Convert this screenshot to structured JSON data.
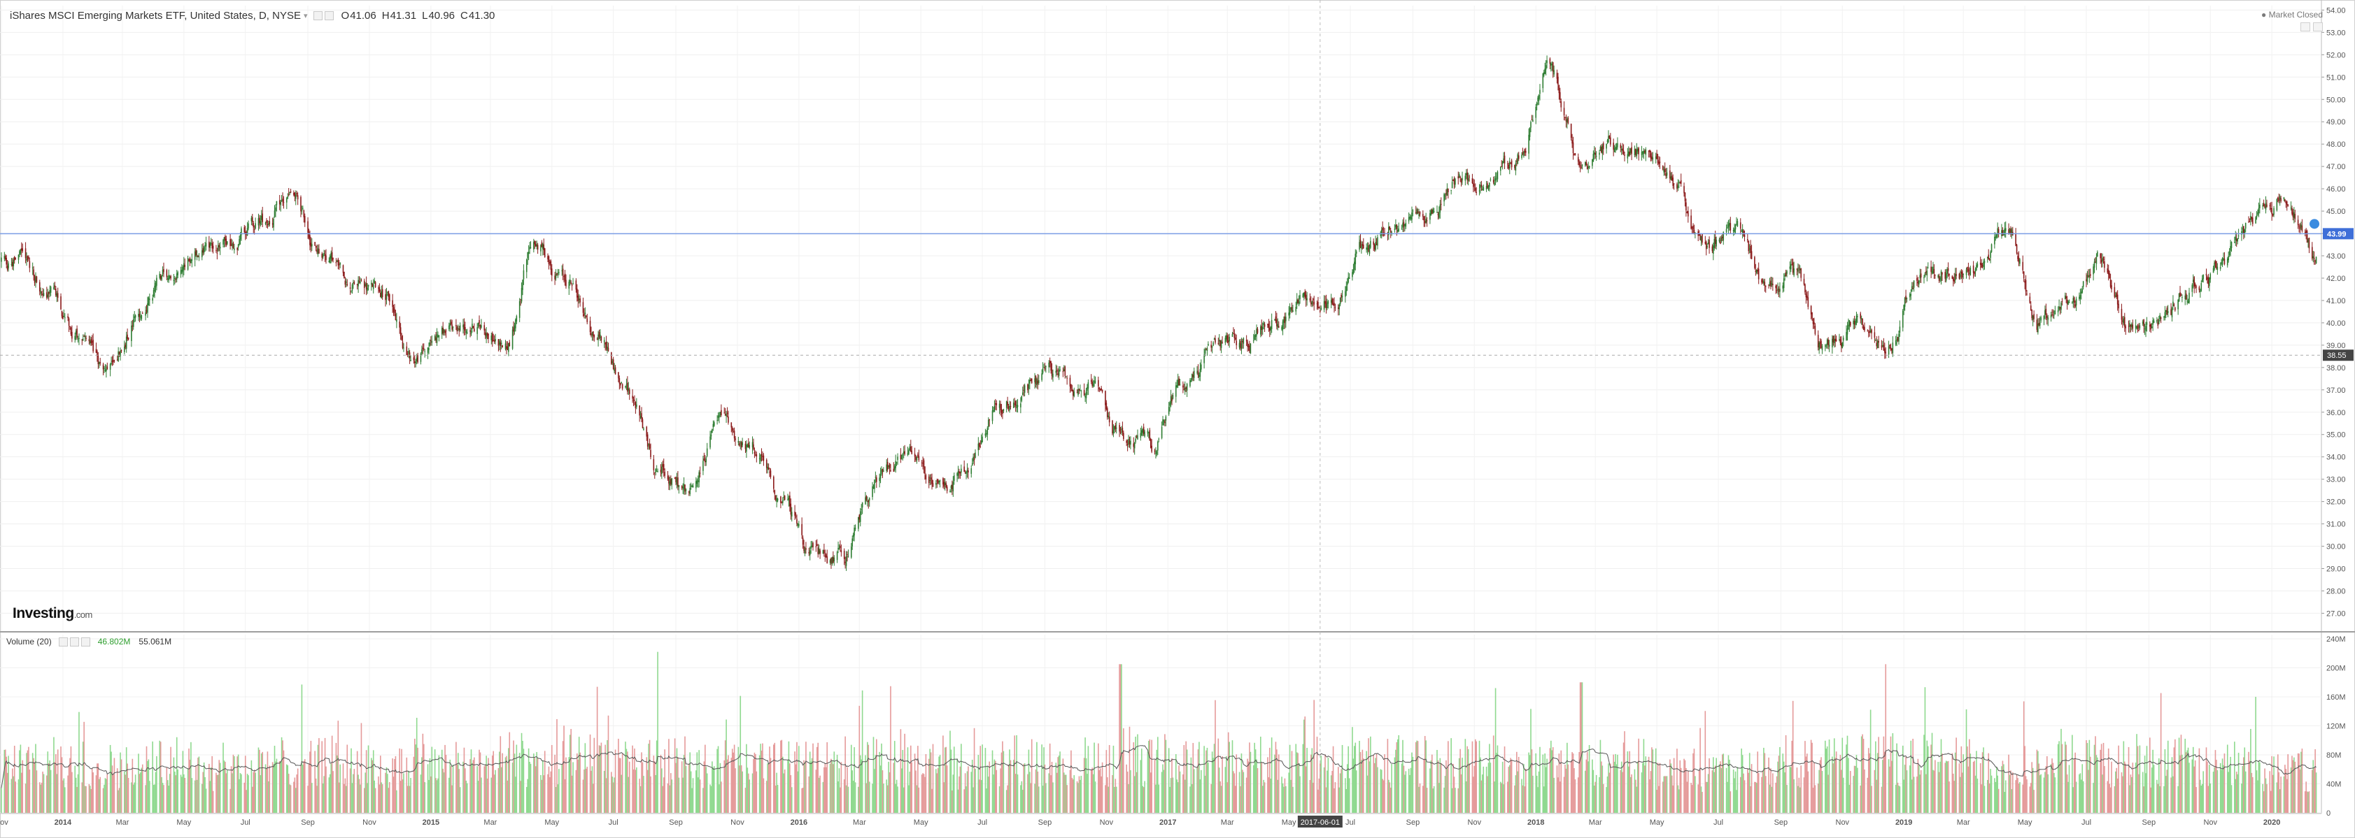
{
  "header": {
    "title": "iShares MSCI Emerging Markets ETF, United States, D, NYSE",
    "dropdown_glyph": "▾",
    "ohlc": [
      {
        "key": "O",
        "value": "41.06"
      },
      {
        "key": "H",
        "value": "41.31"
      },
      {
        "key": "L",
        "value": "40.96"
      },
      {
        "key": "C",
        "value": "41.30"
      }
    ],
    "market_status": "Market Closed"
  },
  "volume_legend": {
    "title": "Volume (20)",
    "value1": "46.802M",
    "value2": "55.061M"
  },
  "branding": {
    "logo_main": "Investing",
    "logo_suffix": ".com"
  },
  "colors": {
    "up": "#26a69a",
    "candle_up": "#2e7d32",
    "candle_down": "#8b1a1a",
    "vol_up": "#8fd98f",
    "vol_down": "#e59a9a",
    "price_line": "#7b9ee6",
    "price_badge": "#3f6fd8",
    "text_green": "#2e9e2e"
  },
  "chart_data": [
    {
      "type": "candlestick",
      "title": "iShares MSCI Emerging Markets ETF, United States, D, NYSE",
      "x_axis": {
        "tick_labels": [
          "Nov",
          "2014",
          "Mar",
          "May",
          "Jul",
          "Sep",
          "Nov",
          "2015",
          "Mar",
          "May",
          "Jul",
          "Sep",
          "Nov",
          "2016",
          "Mar",
          "May",
          "Jul",
          "Sep",
          "Nov",
          "2017",
          "Mar",
          "May",
          "Jul",
          "Sep",
          "Nov",
          "2018",
          "Mar",
          "May",
          "Jul",
          "Sep",
          "Nov",
          "2019",
          "Mar",
          "May",
          "Jul",
          "Sep",
          "Nov",
          "2020"
        ],
        "range": [
          "2013-11",
          "2020-02"
        ],
        "cursor_label": "2017-06-01"
      },
      "y_axis": {
        "range": [
          26.2,
          54.2
        ],
        "tick_labels": [
          "27.00",
          "28.00",
          "29.00",
          "30.00",
          "31.00",
          "32.00",
          "33.00",
          "34.00",
          "35.00",
          "36.00",
          "37.00",
          "38.00",
          "39.00",
          "40.00",
          "41.00",
          "42.00",
          "43.00",
          "44.00",
          "45.00",
          "46.00",
          "47.00",
          "48.00",
          "49.00",
          "50.00",
          "51.00",
          "52.00",
          "53.00",
          "54.00"
        ]
      },
      "current_price": {
        "value": 43.99,
        "label": "43.99"
      },
      "crosshair_price": {
        "value": 38.55,
        "label": "38.55"
      },
      "grid": true,
      "series": [
        {
          "kind": "close_path_monthly",
          "x": [
            "2013-11",
            "2013-12",
            "2014-01",
            "2014-02",
            "2014-03",
            "2014-04",
            "2014-05",
            "2014-06",
            "2014-07",
            "2014-08",
            "2014-09",
            "2014-10",
            "2014-11",
            "2014-12",
            "2015-01",
            "2015-02",
            "2015-03",
            "2015-04",
            "2015-05",
            "2015-06",
            "2015-07",
            "2015-08",
            "2015-09",
            "2015-10",
            "2015-11",
            "2015-12",
            "2016-01",
            "2016-02",
            "2016-03",
            "2016-04",
            "2016-05",
            "2016-06",
            "2016-07",
            "2016-08",
            "2016-09",
            "2016-10",
            "2016-11",
            "2016-12",
            "2017-01",
            "2017-02",
            "2017-03",
            "2017-04",
            "2017-05",
            "2017-06",
            "2017-07",
            "2017-08",
            "2017-09",
            "2017-10",
            "2017-11",
            "2017-12",
            "2018-01",
            "2018-02",
            "2018-03",
            "2018-04",
            "2018-05",
            "2018-06",
            "2018-07",
            "2018-08",
            "2018-09",
            "2018-10",
            "2018-11",
            "2018-12",
            "2019-01",
            "2019-02",
            "2019-03",
            "2019-04",
            "2019-05",
            "2019-06",
            "2019-07",
            "2019-08",
            "2019-09",
            "2019-10",
            "2019-11",
            "2019-12",
            "2020-01",
            "2020-02"
          ],
          "y": [
            42.8,
            41.5,
            39.4,
            37.8,
            40.4,
            42.0,
            43.1,
            43.8,
            44.6,
            45.5,
            43.2,
            41.8,
            41.4,
            38.4,
            39.6,
            40.1,
            39.0,
            43.5,
            42.0,
            39.6,
            37.0,
            33.5,
            32.4,
            35.6,
            34.2,
            32.2,
            29.5,
            29.4,
            32.9,
            34.0,
            32.6,
            33.3,
            35.9,
            37.0,
            37.7,
            36.9,
            35.0,
            34.4,
            37.0,
            38.8,
            39.0,
            40.0,
            41.0,
            41.2,
            43.3,
            44.4,
            45.0,
            46.5,
            46.0,
            47.4,
            51.5,
            47.2,
            48.0,
            47.6,
            46.5,
            43.6,
            44.0,
            42.0,
            42.1,
            38.9,
            40.0,
            38.8,
            42.0,
            42.2,
            42.6,
            44.2,
            40.0,
            41.0,
            42.6,
            39.7,
            40.2,
            41.6,
            42.5,
            44.5,
            45.5,
            43.0
          ]
        },
        {
          "kind": "volume",
          "name": "Volume (20)",
          "unit": "M",
          "y_range": [
            0,
            240
          ],
          "tick_labels": [
            "0",
            "40M",
            "80M",
            "120M",
            "160M",
            "200M",
            "240M"
          ],
          "typical_daily_range": [
            25,
            120
          ],
          "spikes": [
            {
              "x": "2015-08",
              "value": 222
            },
            {
              "x": "2016-11",
              "value": 205
            },
            {
              "x": "2018-02",
              "value": 180
            },
            {
              "x": "2018-12",
              "value": 205
            },
            {
              "x": "2019-12",
              "value": 160
            }
          ],
          "moving_average_range": [
            45,
            100
          ]
        }
      ]
    }
  ]
}
